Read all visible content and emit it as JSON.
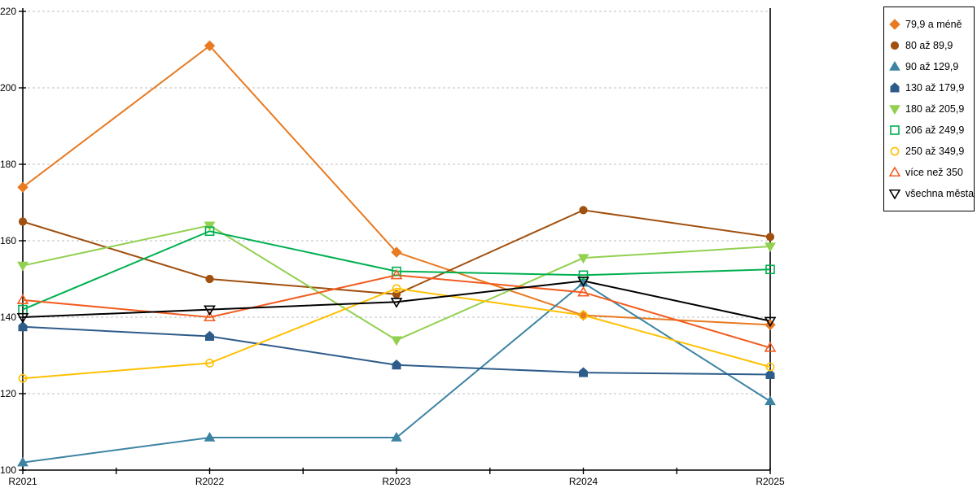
{
  "chart_data": {
    "type": "line",
    "title": "",
    "xlabel": "",
    "ylabel": "",
    "categories": [
      "R2021",
      "R2022",
      "R2023",
      "R2024",
      "R2025"
    ],
    "ylim": [
      100,
      220
    ],
    "ytick_step": 20,
    "grid": "horizontal-dashed",
    "legend_position": "top-right",
    "series": [
      {
        "name": "79,9 a méně",
        "color": "#E87A21",
        "marker": "diamond",
        "fill": "filled",
        "values": [
          174,
          211,
          157,
          140.5,
          138
        ]
      },
      {
        "name": "80 až 89,9",
        "color": "#A0500F",
        "marker": "circle",
        "fill": "filled",
        "values": [
          165,
          150,
          146,
          168,
          161
        ]
      },
      {
        "name": "90 až 129,9",
        "color": "#3D84A3",
        "marker": "triangle-up",
        "fill": "filled",
        "values": [
          102,
          108.5,
          108.5,
          149,
          118
        ]
      },
      {
        "name": "130 až 179,9",
        "color": "#2E5C8A",
        "marker": "pentagon",
        "fill": "filled",
        "values": [
          137.5,
          135,
          127.5,
          125.5,
          125
        ]
      },
      {
        "name": "180 až 205,9",
        "color": "#92D050",
        "marker": "triangle-down",
        "fill": "filled",
        "values": [
          153.5,
          164,
          134,
          155.5,
          158.5
        ]
      },
      {
        "name": "206 až 249,9",
        "color": "#00B050",
        "marker": "square",
        "fill": "hollow",
        "values": [
          142,
          162.5,
          152,
          151,
          152.5
        ]
      },
      {
        "name": "250 až 349,9",
        "color": "#FFC000",
        "marker": "circle",
        "fill": "hollow",
        "values": [
          124,
          128,
          147.5,
          140.5,
          127
        ]
      },
      {
        "name": "více než 350",
        "color": "#F25C1F",
        "marker": "triangle-up",
        "fill": "hollow",
        "values": [
          144.5,
          140,
          151,
          146.5,
          132
        ]
      },
      {
        "name": "všechna města",
        "color": "#000000",
        "marker": "triangle-down",
        "fill": "hollow",
        "values": [
          140,
          142,
          144,
          149.5,
          139
        ]
      }
    ],
    "axis_colors": {
      "axis": "#000000",
      "gridline": "#BFBFBF"
    }
  }
}
